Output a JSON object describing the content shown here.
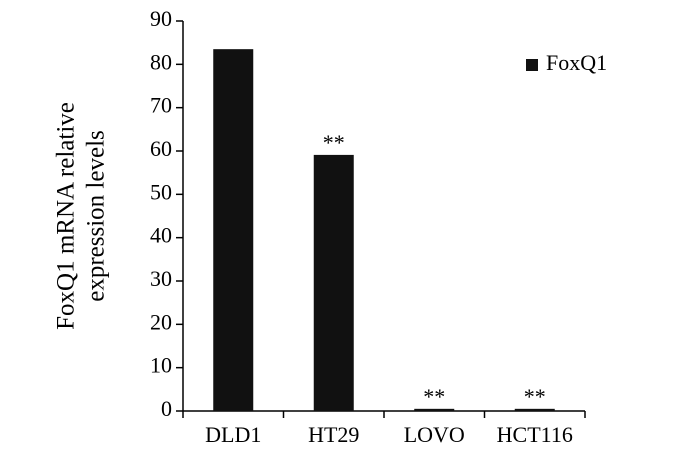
{
  "chart_data": {
    "type": "bar",
    "ylabel": [
      "FoxQ1 mRNA relative",
      "expression levels"
    ],
    "categories": [
      "DLD1",
      "HT29",
      "LOVO",
      "HCT116"
    ],
    "series": [
      {
        "name": "FoxQ1",
        "color": "#111111",
        "values": [
          83.5,
          59.1,
          0.5,
          0.5
        ]
      }
    ],
    "significance": [
      null,
      "**",
      "**",
      "**"
    ],
    "ylim": [
      0,
      90
    ],
    "yticks": [
      0,
      10,
      20,
      30,
      40,
      50,
      60,
      70,
      80,
      90
    ],
    "grid": false,
    "legend": "upper right"
  }
}
